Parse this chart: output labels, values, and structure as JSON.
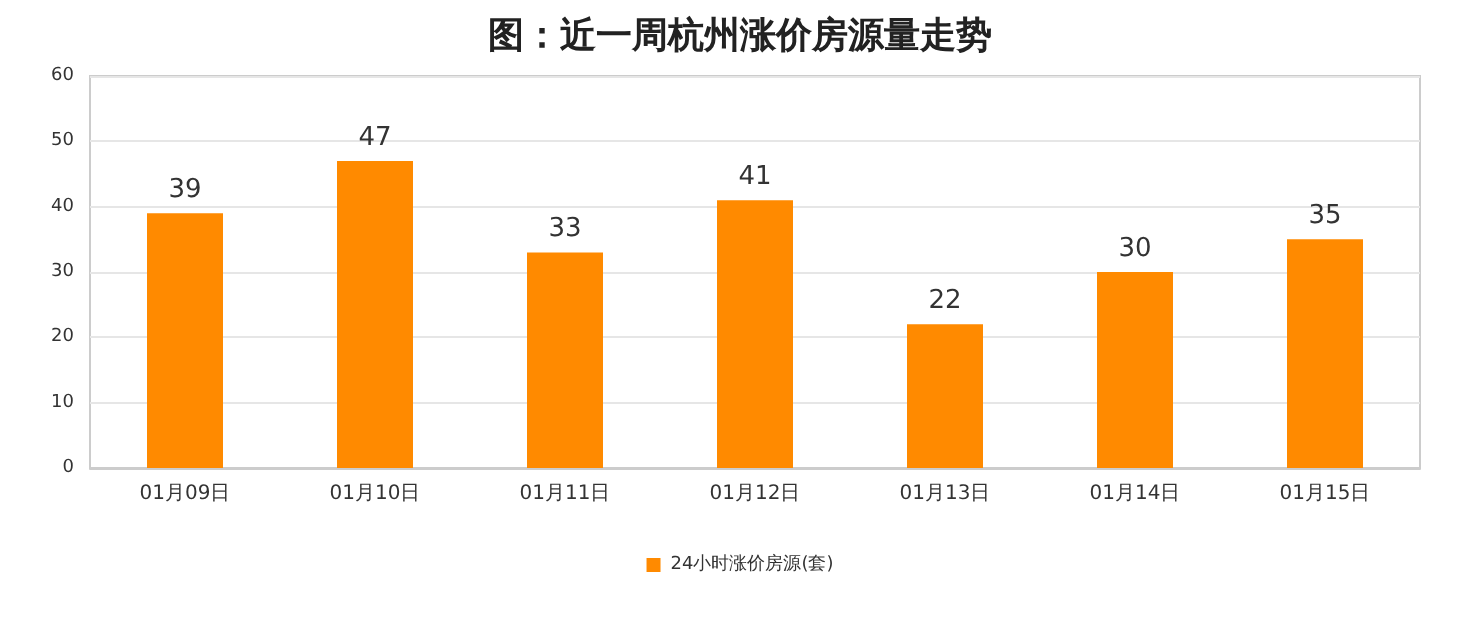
{
  "chart_data": {
    "type": "bar",
    "title": "图：近一周杭州涨价房源量走势",
    "categories": [
      "01月09日",
      "01月10日",
      "01月11日",
      "01月12日",
      "01月13日",
      "01月14日",
      "01月15日"
    ],
    "series": [
      {
        "name": "24小时涨价房源(套)",
        "color": "#ff8a00",
        "values": [
          39,
          47,
          33,
          41,
          22,
          30,
          35
        ]
      }
    ],
    "ylim": [
      0,
      60
    ],
    "yticks": [
      0,
      10,
      20,
      30,
      40,
      50,
      60
    ],
    "grid": "y",
    "legend": "bottom",
    "data_labels": true
  }
}
